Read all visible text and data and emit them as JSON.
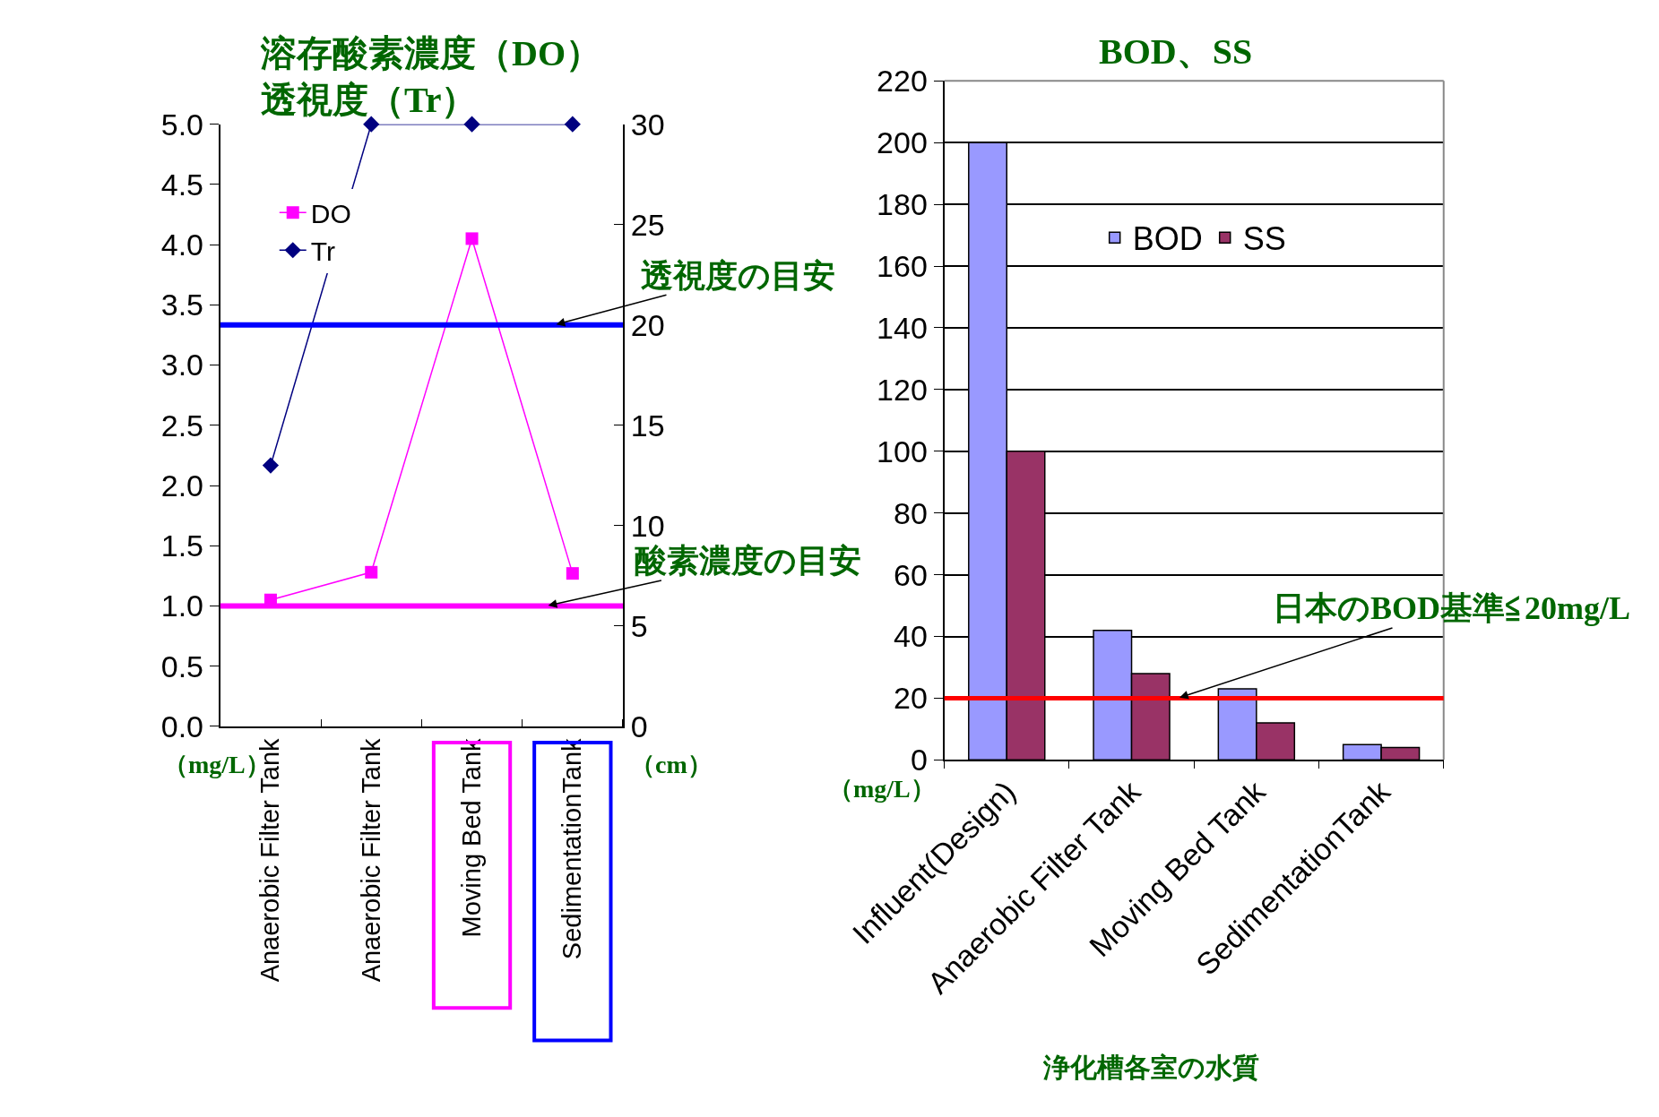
{
  "chart_data": [
    {
      "type": "line",
      "title": "溶存酸素濃度（DO）",
      "subtitle": "透視度（Tr）",
      "ylabel": "（mg/L）",
      "y2label": "（cm）",
      "categories": [
        "Anaerobic Filter Tank",
        "Anaerobic Filter Tank",
        "Moving Bed Tank",
        "SedimentationTank"
      ],
      "series": [
        {
          "name": "DO",
          "color": "#ff00ff",
          "marker": "square",
          "values": [
            1.05,
            1.28,
            4.05,
            1.27
          ]
        },
        {
          "name": "Tr",
          "color": "#000080",
          "marker": "diamond",
          "axis": "y2",
          "values": [
            13,
            30,
            30,
            30
          ]
        }
      ],
      "ylim": [
        0,
        5
      ],
      "yticks": [
        {
          "value": 0,
          "label": "0.0"
        },
        {
          "value": 0.5,
          "label": "0.5"
        },
        {
          "value": 1,
          "label": "1.0"
        },
        {
          "value": 1.5,
          "label": "1.5"
        },
        {
          "value": 2,
          "label": "2.0"
        },
        {
          "value": 2.5,
          "label": "2.5"
        },
        {
          "value": 3,
          "label": "3.0"
        },
        {
          "value": 3.5,
          "label": "3.5"
        },
        {
          "value": 4,
          "label": "4.0"
        },
        {
          "value": 4.5,
          "label": "4.5"
        },
        {
          "value": 5,
          "label": "5.0"
        }
      ],
      "y2lim": [
        0,
        30
      ],
      "y2ticks": [
        0,
        5,
        10,
        15,
        20,
        25,
        30
      ],
      "ref_lines": [
        {
          "axis": "y2",
          "value": 20,
          "label": "透視度の目安",
          "color": "#0000ff"
        },
        {
          "axis": "y",
          "value": 1,
          "label": "酸素濃度の目安",
          "color": "#ff00ff"
        }
      ],
      "grid": false,
      "legend": "top left"
    },
    {
      "type": "bar",
      "title": "BOD、SS",
      "ylabel": "（mg/L）",
      "categories": [
        "Influent(Design)",
        "Anaerobic Filter Tank",
        "Moving Bed Tank",
        "SedimentationTank"
      ],
      "series": [
        {
          "name": "BOD",
          "color": "#9999ff",
          "values": [
            200,
            42,
            23,
            5
          ]
        },
        {
          "name": "SS",
          "color": "#993366",
          "values": [
            100,
            28,
            12,
            4
          ]
        }
      ],
      "ylim": [
        0,
        220
      ],
      "yticks": [
        0,
        20,
        40,
        60,
        80,
        100,
        120,
        140,
        160,
        180,
        200,
        220
      ],
      "ref_lines": [
        {
          "axis": "y",
          "value": 20,
          "label": "日本のBOD基準≦20mg/L",
          "color": "#ff0000"
        }
      ],
      "annotations": [
        "浄化槽各室の水質"
      ],
      "grid": "y",
      "legend": "top"
    }
  ]
}
